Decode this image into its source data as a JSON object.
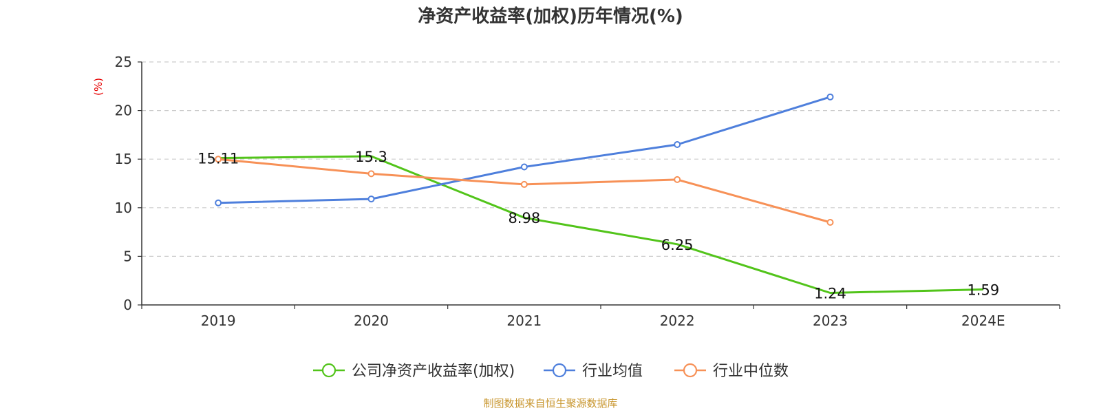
{
  "chart_data": {
    "type": "line",
    "title": "净资产收益率(加权)历年情况(%)",
    "ylabel": "(%)",
    "ylim": [
      0,
      25
    ],
    "yticks": [
      0,
      5,
      10,
      15,
      20,
      25
    ],
    "grid": true,
    "legend_position": "bottom",
    "categories": [
      "2019",
      "2020",
      "2021",
      "2022",
      "2023",
      "2024E"
    ],
    "series": [
      {
        "name": "公司净资产收益率(加权)",
        "color": "#52c41a",
        "values": [
          15.11,
          15.3,
          8.98,
          6.25,
          1.24,
          1.59
        ],
        "labels": [
          "15.11",
          "15.3",
          "8.98",
          "6.25",
          "1.24",
          "1.59"
        ],
        "show_labels": true,
        "show_markers": false
      },
      {
        "name": "行业均值",
        "color": "#4e7fdc",
        "values": [
          10.5,
          10.9,
          14.2,
          16.5,
          21.4,
          null
        ],
        "show_labels": false,
        "show_markers": true
      },
      {
        "name": "行业中位数",
        "color": "#f79157",
        "values": [
          15.0,
          13.5,
          12.4,
          12.9,
          8.5,
          null
        ],
        "show_labels": false,
        "show_markers": true
      }
    ],
    "colors": {
      "axis": "#333333",
      "grid": "#cccccc",
      "unit_label": "#e60000",
      "source": "#c8962e"
    }
  },
  "footer": {
    "source": "制图数据来自恒生聚源数据库"
  }
}
